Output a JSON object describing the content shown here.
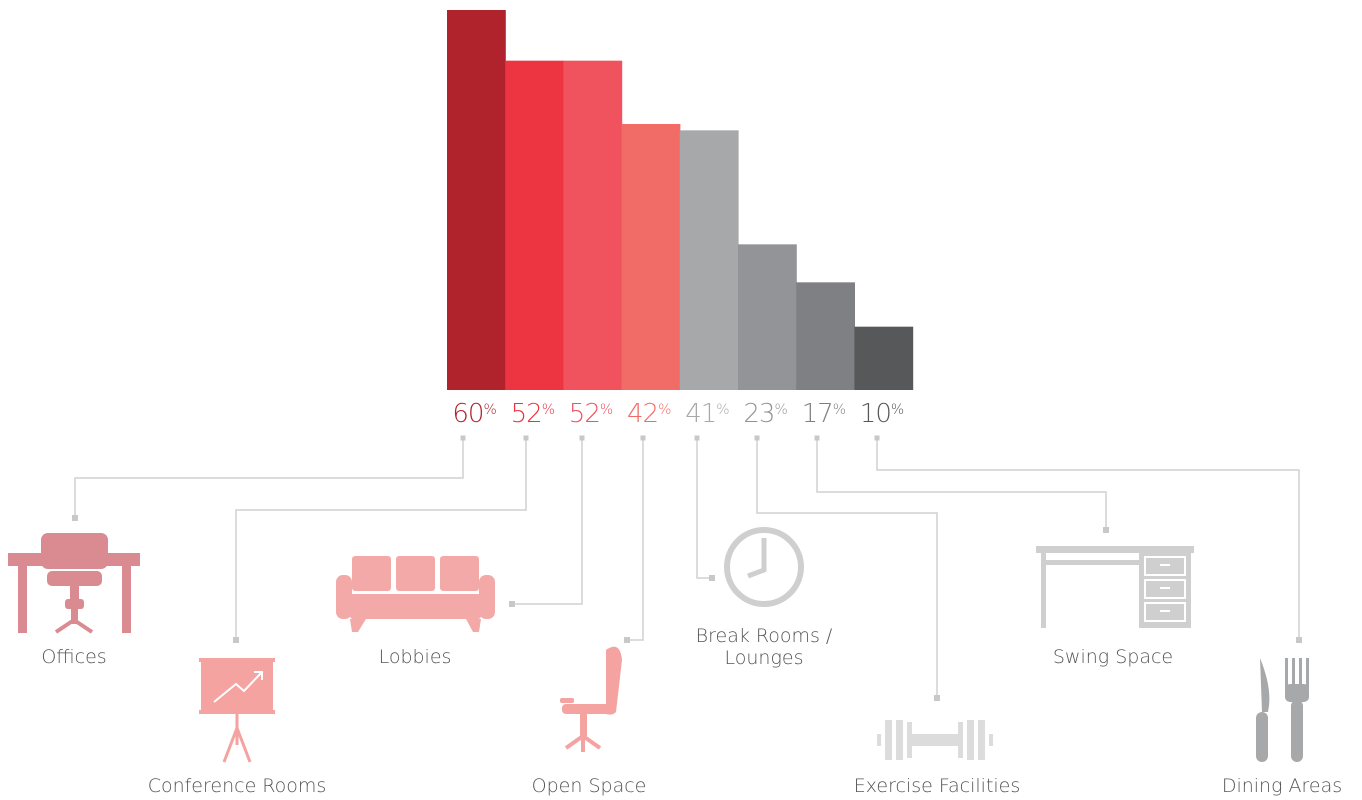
{
  "chart_data": {
    "type": "bar",
    "title": "",
    "xlabel": "",
    "ylabel": "",
    "ylim": [
      0,
      60
    ],
    "grid": false,
    "legend": "none",
    "unit": "%",
    "categories": [
      "Offices",
      "Conference Rooms",
      "Lobbies",
      "Open Space",
      "Break Rooms / Lounges",
      "Exercise Facilities",
      "Swing Space",
      "Dining Areas"
    ],
    "values": [
      60,
      52,
      52,
      42,
      41,
      23,
      17,
      10
    ],
    "bar_colors": [
      "#b0222c",
      "#ec3540",
      "#f0525e",
      "#f26c67",
      "#a7a8aa",
      "#939497",
      "#7f8084",
      "#57585a"
    ],
    "label_colors": [
      "#b0222c",
      "#ec3540",
      "#f0525e",
      "#f26c67",
      "#a7a8aa",
      "#939497",
      "#7f8084",
      "#57585a"
    ],
    "value_labels": [
      "60",
      "52",
      "52",
      "42",
      "41",
      "23",
      "17",
      "10"
    ],
    "percent_sign": "%",
    "category_labels": [
      [
        "Offices"
      ],
      [
        "Conference Rooms"
      ],
      [
        "Lobbies"
      ],
      [
        "Open Space"
      ],
      [
        "Break Rooms /",
        "Lounges"
      ],
      [
        "Exercise Facilities"
      ],
      [
        "Swing Space"
      ],
      [
        "Dining Areas"
      ]
    ],
    "icons": [
      {
        "name": "desk-chair-icon",
        "color": "#d98b91"
      },
      {
        "name": "presentation-board-icon",
        "color": "#f4a3a1"
      },
      {
        "name": "sofa-icon",
        "color": "#f4a9a9"
      },
      {
        "name": "office-chair-icon",
        "color": "#f4a3a1"
      },
      {
        "name": "clock-icon",
        "color": "#cfcfcf"
      },
      {
        "name": "dumbbell-icon",
        "color": "#dcdcdc"
      },
      {
        "name": "desk-icon",
        "color": "#cfcfcf"
      },
      {
        "name": "knife-fork-icon",
        "color": "#a7a8aa"
      }
    ]
  }
}
